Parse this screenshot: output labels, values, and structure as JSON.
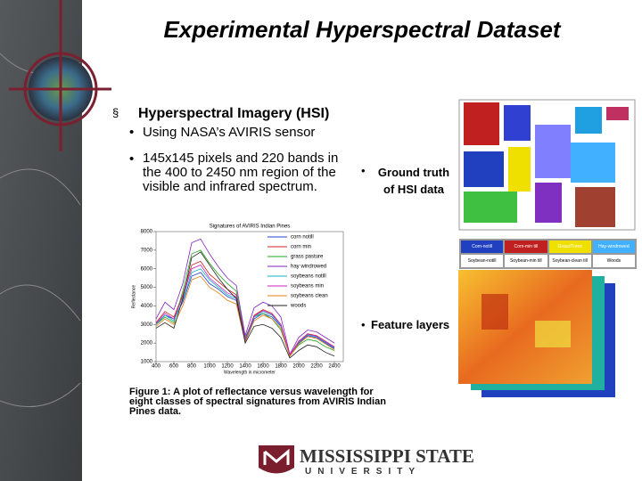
{
  "header": {
    "title": "Experimental Hyperspectral Dataset"
  },
  "bullets": {
    "main": "Hyperspectral Imagery (HSI)",
    "sensor": "Using NASA’s AVIRIS sensor",
    "size": "145x145 pixels and 220 bands in the 400 to 2450 nm region of the visible and infrared spectrum."
  },
  "ground_truth": {
    "label": "Ground truth of HSI data",
    "classes": [
      "Corn-notill",
      "Corn-min till",
      "Grass/Trees",
      "Hay-windrowed",
      "Soybean-notill",
      "Soybean-min till",
      "Soybean-clean till",
      "Woods"
    ]
  },
  "feature_layers": {
    "label": "Feature layers"
  },
  "figure": {
    "caption": "Figure 1: A plot of reflectance versus wavelength for eight classes of spectral signatures from AVIRIS Indian Pines data.",
    "chart": {
      "type": "line",
      "title": "Signatures of AVIRIS Indian Pines",
      "x_label": "Wavelength in micrometer",
      "y_label": "Reflectance",
      "x": [
        400,
        500,
        600,
        700,
        800,
        900,
        1000,
        1100,
        1200,
        1300,
        1400,
        1500,
        1600,
        1700,
        1800,
        1900,
        2000,
        2100,
        2200,
        2300,
        2400
      ],
      "xlim": [
        400,
        2500
      ],
      "xticks": [
        400,
        600,
        800,
        1000,
        1200,
        1400,
        1600,
        1800,
        2000,
        2200,
        2400
      ],
      "ylim": [
        1000,
        8000
      ],
      "yticks": [
        1000,
        2000,
        3000,
        4000,
        5000,
        6000,
        7000,
        8000
      ],
      "series": [
        {
          "name": "corn notill",
          "color": "#1f3fd0",
          "values": [
            3000,
            3500,
            3300,
            4200,
            5600,
            5800,
            5200,
            4900,
            4500,
            4300,
            2100,
            3300,
            3600,
            3400,
            2900,
            1300,
            2000,
            2400,
            2300,
            2000,
            1700
          ]
        },
        {
          "name": "corn min",
          "color": "#d02020",
          "values": [
            3100,
            3700,
            3400,
            4600,
            6200,
            6400,
            5700,
            5300,
            4900,
            4600,
            2200,
            3500,
            3800,
            3600,
            3000,
            1350,
            2100,
            2500,
            2400,
            2100,
            1800
          ]
        },
        {
          "name": "grass pasture",
          "color": "#20a020",
          "values": [
            3000,
            3400,
            3100,
            4800,
            6800,
            7000,
            6300,
            5700,
            5200,
            4800,
            2300,
            3400,
            3600,
            3300,
            2700,
            1300,
            1900,
            2200,
            2100,
            1800,
            1600
          ]
        },
        {
          "name": "hay windrowed",
          "color": "#8020c0",
          "values": [
            3300,
            4200,
            3800,
            5200,
            7400,
            7600,
            6800,
            6100,
            5500,
            5100,
            2400,
            3900,
            4200,
            4000,
            3400,
            1400,
            2300,
            2700,
            2600,
            2300,
            2000
          ]
        },
        {
          "name": "soybeans notill",
          "color": "#10b0c0",
          "values": [
            3000,
            3500,
            3200,
            4300,
            5800,
            6000,
            5400,
            5000,
            4600,
            4400,
            2150,
            3400,
            3700,
            3500,
            2950,
            1320,
            2050,
            2450,
            2350,
            2050,
            1750
          ]
        },
        {
          "name": "soybeans min",
          "color": "#d020c0",
          "values": [
            3050,
            3600,
            3300,
            4500,
            6000,
            6200,
            5500,
            5100,
            4700,
            4500,
            2200,
            3450,
            3750,
            3550,
            3000,
            1330,
            2080,
            2480,
            2380,
            2080,
            1780
          ]
        },
        {
          "name": "soybeans clean",
          "color": "#e08010",
          "values": [
            2900,
            3300,
            3000,
            4000,
            5400,
            5600,
            5000,
            4700,
            4300,
            4100,
            2050,
            3200,
            3500,
            3300,
            2800,
            1280,
            1950,
            2350,
            2250,
            1950,
            1650
          ]
        },
        {
          "name": "woods",
          "color": "#202020",
          "values": [
            2800,
            3100,
            2800,
            4400,
            6600,
            6900,
            6200,
            5500,
            4900,
            4400,
            2000,
            2900,
            3000,
            2800,
            2300,
            1200,
            1600,
            1900,
            1800,
            1500,
            1300
          ]
        }
      ]
    }
  },
  "logo": {
    "name": "MISSISSIPPI STATE",
    "sub": "UNIVERSITY"
  }
}
